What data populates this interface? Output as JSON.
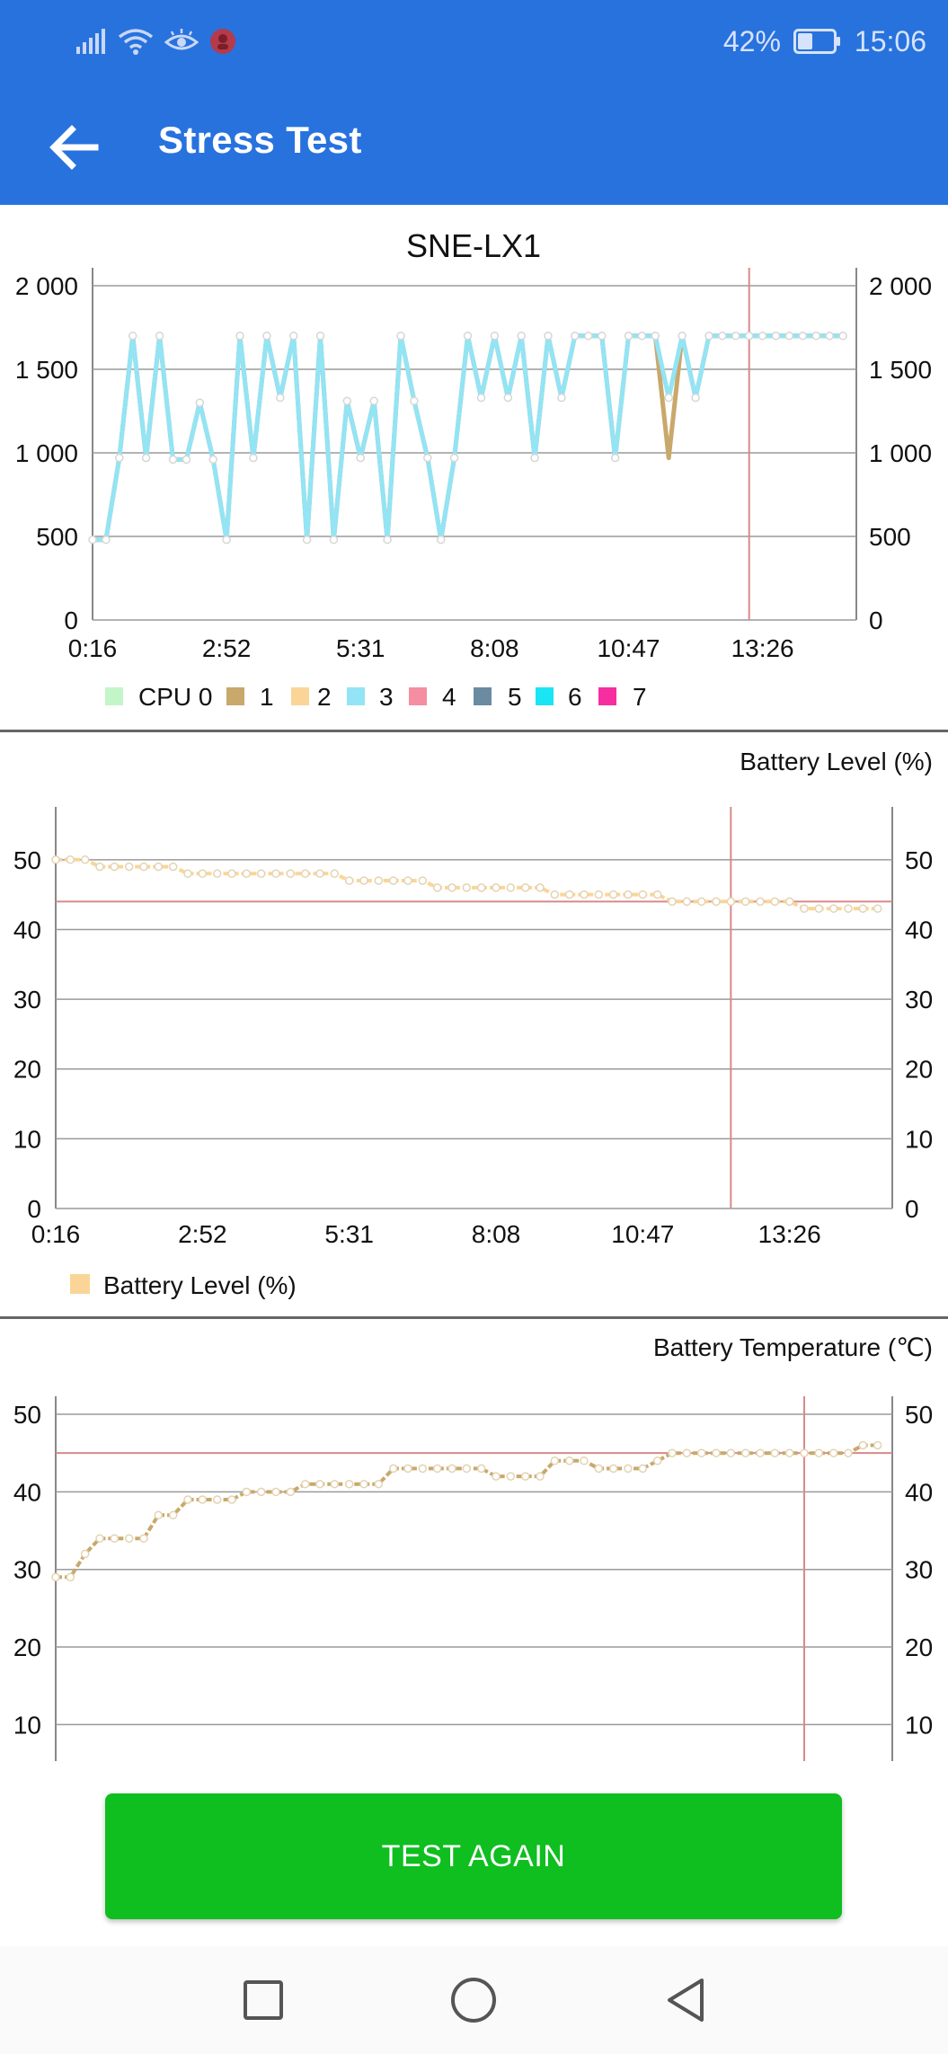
{
  "status_bar": {
    "icons": [
      "signal-icon",
      "wifi-icon",
      "eye-comfort-icon",
      "notification-app-icon"
    ],
    "battery_percent": "42%",
    "battery_level": 0.42,
    "time": "15:06"
  },
  "app_bar": {
    "back_icon": "arrow-left-icon",
    "title": "Stress Test"
  },
  "colors": {
    "app_bar": "#2872de",
    "button": "#0fbe1f",
    "marker_line": "#d9898a"
  },
  "charts": {
    "cpu": {
      "title": "SNE-LX1",
      "legend": [
        {
          "label": "CPU 0",
          "color": "#c3f5c8"
        },
        {
          "label": "1",
          "color": "#c9a86b"
        },
        {
          "label": "2",
          "color": "#fbd597"
        },
        {
          "label": "3",
          "color": "#93e4f4"
        },
        {
          "label": "4",
          "color": "#f48ea0"
        },
        {
          "label": "5",
          "color": "#6a8ba0"
        },
        {
          "label": "6",
          "color": "#1ae5f5"
        },
        {
          "label": "7",
          "color": "#f72ea0"
        }
      ]
    },
    "battery_level": {
      "title": "Battery Level (%)",
      "legend": [
        {
          "label": "Battery Level (%)",
          "color": "#fbd597"
        }
      ]
    },
    "battery_temp": {
      "title": "Battery Temperature (℃)"
    }
  },
  "chart_data": [
    {
      "type": "line",
      "title": "SNE-LX1",
      "xlim": [
        0,
        57
      ],
      "ylim": [
        0,
        2000
      ],
      "x_ticks": [
        {
          "x": 0,
          "label": "0:16"
        },
        {
          "x": 10,
          "label": "2:52"
        },
        {
          "x": 20,
          "label": "5:31"
        },
        {
          "x": 30,
          "label": "8:08"
        },
        {
          "x": 40,
          "label": "10:47"
        },
        {
          "x": 50,
          "label": "13:26"
        }
      ],
      "y_ticks": [
        {
          "y": 0,
          "label": "0"
        },
        {
          "y": 500,
          "label": "500"
        },
        {
          "y": 1000,
          "label": "1 000"
        },
        {
          "y": 1500,
          "label": "1 500"
        },
        {
          "y": 2000,
          "label": "2 000"
        }
      ],
      "marker_x": 49,
      "series": [
        {
          "name": "1",
          "color": "#c9a86b",
          "values": [
            480,
            480,
            970,
            1700,
            970,
            1700,
            960,
            960,
            1300,
            960,
            480,
            1700,
            970,
            1700,
            1330,
            1700,
            480,
            1700,
            480,
            1310,
            970,
            1310,
            480,
            1700,
            1310,
            970,
            480,
            970,
            1700,
            1330,
            1700,
            1330,
            1700,
            970,
            1700,
            1330,
            1700,
            1700,
            1700,
            970,
            1700,
            1700,
            1700,
            970,
            1700,
            1330,
            1700,
            1700,
            1700,
            1700,
            1700,
            1700,
            1700,
            1700,
            1700,
            1700,
            1700
          ]
        },
        {
          "name": "3",
          "color": "#93e4f4",
          "values": [
            480,
            480,
            970,
            1700,
            970,
            1700,
            960,
            960,
            1300,
            960,
            480,
            1700,
            970,
            1700,
            1330,
            1700,
            480,
            1700,
            480,
            1310,
            970,
            1310,
            480,
            1700,
            1310,
            970,
            480,
            970,
            1700,
            1330,
            1700,
            1330,
            1700,
            970,
            1700,
            1330,
            1700,
            1700,
            1700,
            970,
            1700,
            1700,
            1700,
            1330,
            1700,
            1330,
            1700,
            1700,
            1700,
            1700,
            1700,
            1700,
            1700,
            1700,
            1700,
            1700,
            1700
          ]
        }
      ]
    },
    {
      "type": "line",
      "title": "Battery Level (%)",
      "xlim": [
        0,
        57
      ],
      "ylim": [
        0,
        55
      ],
      "x_ticks": [
        {
          "x": 0,
          "label": "0:16"
        },
        {
          "x": 10,
          "label": "2:52"
        },
        {
          "x": 20,
          "label": "5:31"
        },
        {
          "x": 30,
          "label": "8:08"
        },
        {
          "x": 40,
          "label": "10:47"
        },
        {
          "x": 50,
          "label": "13:26"
        }
      ],
      "y_ticks": [
        {
          "y": 0,
          "label": "0"
        },
        {
          "y": 10,
          "label": "10"
        },
        {
          "y": 20,
          "label": "20"
        },
        {
          "y": 30,
          "label": "30"
        },
        {
          "y": 40,
          "label": "40"
        },
        {
          "y": 50,
          "label": "50"
        }
      ],
      "marker_x": 46,
      "marker_y": 44,
      "series": [
        {
          "name": "Battery Level (%)",
          "color": "#fbd597",
          "values": [
            50,
            50,
            50,
            49,
            49,
            49,
            49,
            49,
            49,
            48,
            48,
            48,
            48,
            48,
            48,
            48,
            48,
            48,
            48,
            48,
            47,
            47,
            47,
            47,
            47,
            47,
            46,
            46,
            46,
            46,
            46,
            46,
            46,
            46,
            45,
            45,
            45,
            45,
            45,
            45,
            45,
            45,
            44,
            44,
            44,
            44,
            44,
            44,
            44,
            44,
            44,
            43,
            43,
            43,
            43,
            43,
            43
          ]
        }
      ]
    },
    {
      "type": "line",
      "title": "Battery Temperature (℃)",
      "xlim": [
        0,
        57
      ],
      "ylim": [
        5.3,
        50
      ],
      "y_ticks": [
        {
          "y": 10,
          "label": "10"
        },
        {
          "y": 20,
          "label": "20"
        },
        {
          "y": 30,
          "label": "30"
        },
        {
          "y": 40,
          "label": "40"
        },
        {
          "y": 50,
          "label": "50"
        }
      ],
      "marker_x": 51,
      "marker_y": 45,
      "series": [
        {
          "name": "temperature",
          "color": "#c9a86b",
          "values": [
            29,
            29,
            32,
            34,
            34,
            34,
            34,
            37,
            37,
            39,
            39,
            39,
            39,
            40,
            40,
            40,
            40,
            41,
            41,
            41,
            41,
            41,
            41,
            43,
            43,
            43,
            43,
            43,
            43,
            43,
            42,
            42,
            42,
            42,
            44,
            44,
            44,
            43,
            43,
            43,
            43,
            44,
            45,
            45,
            45,
            45,
            45,
            45,
            45,
            45,
            45,
            45,
            45,
            45,
            45,
            46,
            46
          ]
        }
      ]
    }
  ],
  "button": {
    "label": "TEST AGAIN"
  },
  "nav": {
    "items": [
      "square-recents-icon",
      "circle-home-icon",
      "triangle-back-icon"
    ]
  }
}
